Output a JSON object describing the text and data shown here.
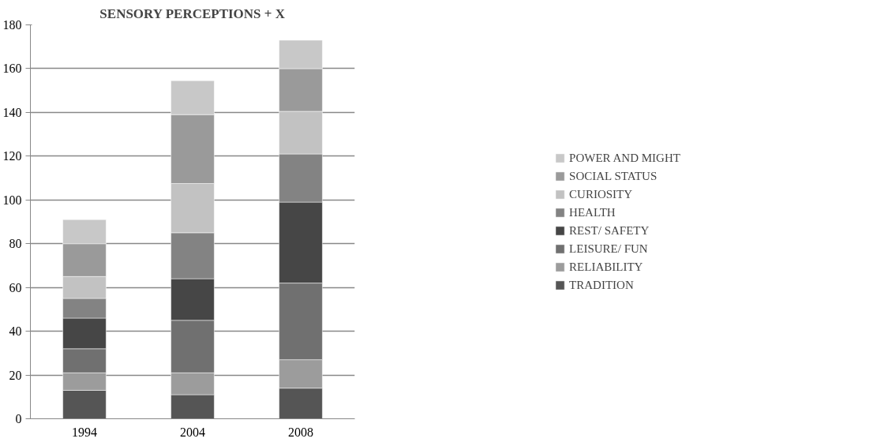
{
  "chart_data": {
    "type": "bar",
    "title": "SENSORY PERCEPTIONS + X",
    "stacked": true,
    "categories": [
      "1994",
      "2004",
      "2008"
    ],
    "series": [
      {
        "name": "TRADITION",
        "color": "#555555",
        "values": [
          13,
          11,
          14
        ]
      },
      {
        "name": "RELIABILITY",
        "color": "#9c9c9c",
        "values": [
          8,
          10,
          13
        ]
      },
      {
        "name": "LEISURE/ FUN",
        "color": "#707070",
        "values": [
          11,
          24,
          35
        ]
      },
      {
        "name": "REST/ SAFETY",
        "color": "#464646",
        "values": [
          14,
          19,
          37
        ]
      },
      {
        "name": "HEALTH",
        "color": "#838383",
        "values": [
          9,
          21,
          22
        ]
      },
      {
        "name": "CURIOSITY",
        "color": "#c2c2c2",
        "values": [
          10,
          22.5,
          19.5
        ]
      },
      {
        "name": "SOCIAL STATUS",
        "color": "#9a9a9a",
        "values": [
          15,
          31.5,
          19.5
        ]
      },
      {
        "name": "POWER AND MIGHT",
        "color": "#c8c8c8",
        "values": [
          11,
          15.5,
          13
        ]
      }
    ],
    "ylim": [
      0,
      180
    ],
    "yticks": [
      0,
      20,
      40,
      60,
      80,
      100,
      120,
      140,
      160,
      180
    ],
    "grid": "y",
    "legend": "right"
  }
}
